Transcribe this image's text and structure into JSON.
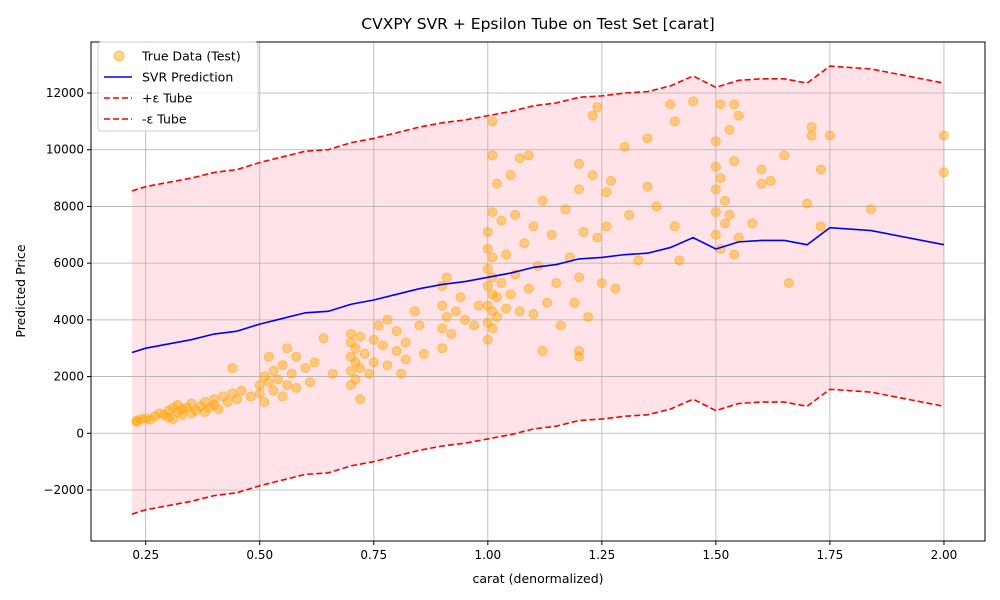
{
  "chart_data": {
    "type": "scatter",
    "title": "CVXPY SVR + Epsilon Tube on Test Set [carat]",
    "xlabel": "carat (denormalized)",
    "ylabel": "Predicted Price",
    "xlim": [
      0.13,
      2.09
    ],
    "ylim": [
      -3800,
      13800
    ],
    "x_ticks": [
      "0.25",
      "0.50",
      "0.75",
      "1.00",
      "1.25",
      "1.50",
      "1.75",
      "2.00"
    ],
    "y_ticks": [
      "−2000",
      "0",
      "2000",
      "4000",
      "6000",
      "8000",
      "10000",
      "12000"
    ],
    "grid": true,
    "legend_position": "upper-left",
    "epsilon": 5700,
    "colors": {
      "scatter": "#ffa500",
      "prediction": "#0000ff",
      "tube": "#ff0000",
      "fill": "#ffc0cb"
    },
    "series": [
      {
        "name": "True Data (Test)",
        "kind": "scatter",
        "points": [
          [
            0.23,
            400
          ],
          [
            0.23,
            450
          ],
          [
            0.24,
            500
          ],
          [
            0.25,
            520
          ],
          [
            0.26,
            480
          ],
          [
            0.27,
            600
          ],
          [
            0.28,
            700
          ],
          [
            0.29,
            650
          ],
          [
            0.3,
            800
          ],
          [
            0.3,
            550
          ],
          [
            0.31,
            900
          ],
          [
            0.31,
            500
          ],
          [
            0.32,
            750
          ],
          [
            0.32,
            1000
          ],
          [
            0.33,
            650
          ],
          [
            0.33,
            850
          ],
          [
            0.34,
            900
          ],
          [
            0.35,
            700
          ],
          [
            0.35,
            1050
          ],
          [
            0.36,
            800
          ],
          [
            0.37,
            950
          ],
          [
            0.38,
            750
          ],
          [
            0.38,
            1100
          ],
          [
            0.39,
            900
          ],
          [
            0.4,
            1000
          ],
          [
            0.4,
            1200
          ],
          [
            0.41,
            850
          ],
          [
            0.42,
            1300
          ],
          [
            0.43,
            1100
          ],
          [
            0.44,
            1400
          ],
          [
            0.44,
            2300
          ],
          [
            0.45,
            1200
          ],
          [
            0.46,
            1500
          ],
          [
            0.48,
            1300
          ],
          [
            0.5,
            1700
          ],
          [
            0.5,
            1400
          ],
          [
            0.51,
            2000
          ],
          [
            0.51,
            1100
          ],
          [
            0.52,
            1800
          ],
          [
            0.52,
            2700
          ],
          [
            0.53,
            1500
          ],
          [
            0.53,
            2200
          ],
          [
            0.54,
            1900
          ],
          [
            0.55,
            1300
          ],
          [
            0.55,
            2400
          ],
          [
            0.56,
            1700
          ],
          [
            0.56,
            3000
          ],
          [
            0.57,
            2100
          ],
          [
            0.58,
            1600
          ],
          [
            0.58,
            2700
          ],
          [
            0.6,
            2300
          ],
          [
            0.61,
            1800
          ],
          [
            0.62,
            2500
          ],
          [
            0.64,
            3350
          ],
          [
            0.66,
            2100
          ],
          [
            0.7,
            1700
          ],
          [
            0.7,
            2200
          ],
          [
            0.7,
            2700
          ],
          [
            0.7,
            3200
          ],
          [
            0.7,
            3500
          ],
          [
            0.71,
            1900
          ],
          [
            0.71,
            2500
          ],
          [
            0.71,
            3000
          ],
          [
            0.72,
            2300
          ],
          [
            0.72,
            1200
          ],
          [
            0.72,
            3400
          ],
          [
            0.73,
            2800
          ],
          [
            0.74,
            2100
          ],
          [
            0.75,
            3300
          ],
          [
            0.75,
            2500
          ],
          [
            0.76,
            3800
          ],
          [
            0.77,
            3100
          ],
          [
            0.78,
            2400
          ],
          [
            0.78,
            4000
          ],
          [
            0.8,
            3600
          ],
          [
            0.8,
            2900
          ],
          [
            0.81,
            2100
          ],
          [
            0.82,
            3200
          ],
          [
            0.82,
            2600
          ],
          [
            0.84,
            4300
          ],
          [
            0.85,
            3800
          ],
          [
            0.86,
            2800
          ],
          [
            0.9,
            3000
          ],
          [
            0.9,
            3700
          ],
          [
            0.9,
            4500
          ],
          [
            0.9,
            5200
          ],
          [
            0.91,
            5500
          ],
          [
            0.91,
            4100
          ],
          [
            0.92,
            3500
          ],
          [
            0.93,
            4300
          ],
          [
            0.94,
            4800
          ],
          [
            0.95,
            4000
          ],
          [
            0.97,
            3800
          ],
          [
            0.98,
            4500
          ],
          [
            1.0,
            3300
          ],
          [
            1.0,
            3900
          ],
          [
            1.0,
            4500
          ],
          [
            1.0,
            5200
          ],
          [
            1.0,
            5800
          ],
          [
            1.0,
            6500
          ],
          [
            1.0,
            7100
          ],
          [
            1.01,
            3700
          ],
          [
            1.01,
            4300
          ],
          [
            1.01,
            4900
          ],
          [
            1.01,
            5500
          ],
          [
            1.01,
            6200
          ],
          [
            1.01,
            7800
          ],
          [
            1.01,
            9800
          ],
          [
            1.01,
            11000
          ],
          [
            1.02,
            4100
          ],
          [
            1.02,
            4800
          ],
          [
            1.02,
            8800
          ],
          [
            1.03,
            5300
          ],
          [
            1.03,
            7500
          ],
          [
            1.04,
            4400
          ],
          [
            1.04,
            6300
          ],
          [
            1.05,
            9100
          ],
          [
            1.05,
            4900
          ],
          [
            1.06,
            7700
          ],
          [
            1.06,
            5600
          ],
          [
            1.07,
            9700
          ],
          [
            1.07,
            4300
          ],
          [
            1.08,
            6700
          ],
          [
            1.09,
            5100
          ],
          [
            1.09,
            9800
          ],
          [
            1.1,
            7300
          ],
          [
            1.1,
            4200
          ],
          [
            1.11,
            5900
          ],
          [
            1.12,
            8200
          ],
          [
            1.12,
            2900
          ],
          [
            1.13,
            4600
          ],
          [
            1.14,
            7000
          ],
          [
            1.15,
            5300
          ],
          [
            1.16,
            3800
          ],
          [
            1.17,
            7900
          ],
          [
            1.18,
            6200
          ],
          [
            1.19,
            4600
          ],
          [
            1.2,
            2700
          ],
          [
            1.2,
            2900
          ],
          [
            1.2,
            9500
          ],
          [
            1.2,
            8600
          ],
          [
            1.2,
            5500
          ],
          [
            1.21,
            7100
          ],
          [
            1.22,
            4100
          ],
          [
            1.23,
            11200
          ],
          [
            1.23,
            9100
          ],
          [
            1.24,
            6900
          ],
          [
            1.24,
            11500
          ],
          [
            1.25,
            5300
          ],
          [
            1.26,
            8500
          ],
          [
            1.26,
            7300
          ],
          [
            1.27,
            8900
          ],
          [
            1.28,
            5100
          ],
          [
            1.3,
            10100
          ],
          [
            1.31,
            7700
          ],
          [
            1.33,
            6100
          ],
          [
            1.35,
            8700
          ],
          [
            1.35,
            10400
          ],
          [
            1.37,
            8000
          ],
          [
            1.4,
            11600
          ],
          [
            1.41,
            11000
          ],
          [
            1.41,
            7300
          ],
          [
            1.42,
            6100
          ],
          [
            1.45,
            11700
          ],
          [
            1.5,
            10300
          ],
          [
            1.5,
            9400
          ],
          [
            1.5,
            8600
          ],
          [
            1.5,
            7800
          ],
          [
            1.5,
            7000
          ],
          [
            1.51,
            11600
          ],
          [
            1.51,
            9000
          ],
          [
            1.51,
            6500
          ],
          [
            1.52,
            8200
          ],
          [
            1.52,
            7400
          ],
          [
            1.53,
            10700
          ],
          [
            1.53,
            7700
          ],
          [
            1.54,
            11600
          ],
          [
            1.54,
            9600
          ],
          [
            1.55,
            11200
          ],
          [
            1.55,
            6900
          ],
          [
            1.54,
            6300
          ],
          [
            1.58,
            7400
          ],
          [
            1.6,
            9300
          ],
          [
            1.6,
            8800
          ],
          [
            1.62,
            8900
          ],
          [
            1.65,
            9800
          ],
          [
            1.66,
            5300
          ],
          [
            1.7,
            8100
          ],
          [
            1.71,
            10800
          ],
          [
            1.71,
            10500
          ],
          [
            1.73,
            9300
          ],
          [
            1.73,
            7300
          ],
          [
            1.75,
            10500
          ],
          [
            1.84,
            7900
          ],
          [
            2.0,
            10500
          ],
          [
            2.0,
            9200
          ]
        ]
      },
      {
        "name": "SVR Prediction",
        "kind": "line",
        "x": [
          0.22,
          0.25,
          0.3,
          0.35,
          0.4,
          0.45,
          0.5,
          0.55,
          0.6,
          0.65,
          0.7,
          0.75,
          0.8,
          0.85,
          0.9,
          0.95,
          1.0,
          1.05,
          1.1,
          1.15,
          1.2,
          1.25,
          1.3,
          1.35,
          1.4,
          1.45,
          1.5,
          1.55,
          1.6,
          1.65,
          1.7,
          1.75,
          1.84,
          2.0
        ],
        "y": [
          2850,
          3000,
          3150,
          3300,
          3500,
          3600,
          3850,
          4050,
          4250,
          4300,
          4550,
          4700,
          4900,
          5100,
          5250,
          5350,
          5500,
          5650,
          5850,
          5950,
          6150,
          6200,
          6300,
          6350,
          6550,
          6900,
          6500,
          6750,
          6800,
          6800,
          6650,
          7250,
          7150,
          6650
        ]
      },
      {
        "name": "+ε Tube",
        "kind": "line",
        "offset": 5700
      },
      {
        "name": "-ε Tube",
        "kind": "line",
        "offset": -5700
      }
    ]
  }
}
